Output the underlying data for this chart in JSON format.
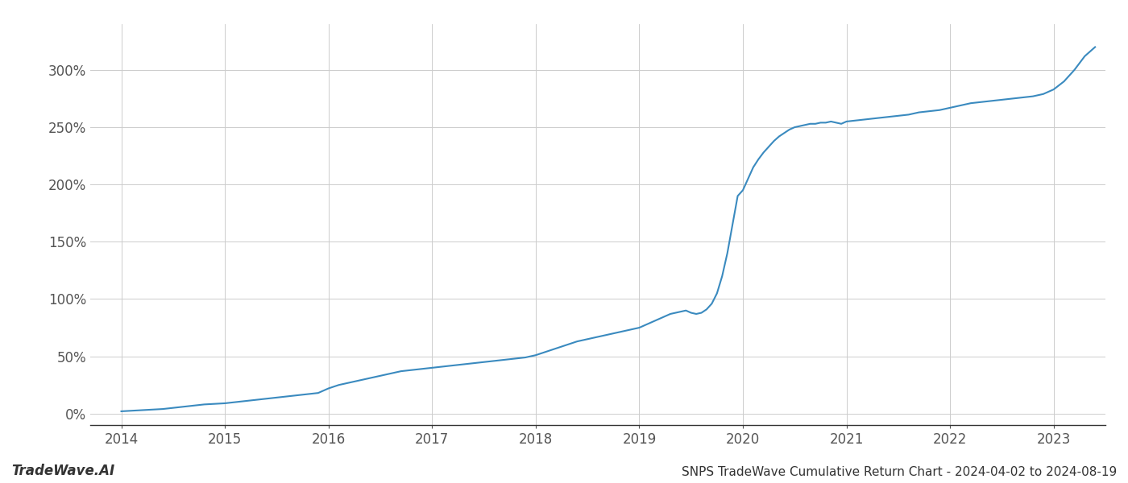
{
  "title": "SNPS TradeWave Cumulative Return Chart - 2024-04-02 to 2024-08-19",
  "watermark": "TradeWave.AI",
  "line_color": "#3a8abf",
  "background_color": "#ffffff",
  "grid_color": "#cccccc",
  "x_years": [
    2014.0,
    2014.1,
    2014.2,
    2014.3,
    2014.4,
    2014.5,
    2014.6,
    2014.7,
    2014.8,
    2014.9,
    2015.0,
    2015.1,
    2015.2,
    2015.3,
    2015.4,
    2015.5,
    2015.6,
    2015.7,
    2015.8,
    2015.9,
    2016.0,
    2016.1,
    2016.2,
    2016.3,
    2016.4,
    2016.5,
    2016.6,
    2016.7,
    2016.8,
    2016.9,
    2017.0,
    2017.1,
    2017.2,
    2017.3,
    2017.4,
    2017.5,
    2017.6,
    2017.7,
    2017.8,
    2017.9,
    2018.0,
    2018.1,
    2018.2,
    2018.3,
    2018.4,
    2018.5,
    2018.6,
    2018.7,
    2018.8,
    2018.9,
    2019.0,
    2019.05,
    2019.1,
    2019.15,
    2019.2,
    2019.25,
    2019.3,
    2019.35,
    2019.4,
    2019.45,
    2019.5,
    2019.55,
    2019.6,
    2019.65,
    2019.7,
    2019.75,
    2019.8,
    2019.85,
    2019.9,
    2019.95,
    2020.0,
    2020.05,
    2020.1,
    2020.15,
    2020.2,
    2020.25,
    2020.3,
    2020.35,
    2020.4,
    2020.45,
    2020.5,
    2020.55,
    2020.6,
    2020.65,
    2020.7,
    2020.75,
    2020.8,
    2020.85,
    2020.9,
    2020.95,
    2021.0,
    2021.1,
    2021.2,
    2021.3,
    2021.4,
    2021.5,
    2021.6,
    2021.7,
    2021.8,
    2021.9,
    2022.0,
    2022.1,
    2022.2,
    2022.3,
    2022.4,
    2022.5,
    2022.6,
    2022.7,
    2022.8,
    2022.9,
    2023.0,
    2023.1,
    2023.2,
    2023.3,
    2023.4
  ],
  "y_values": [
    2,
    2.5,
    3,
    3.5,
    4,
    5,
    6,
    7,
    8,
    8.5,
    9,
    10,
    11,
    12,
    13,
    14,
    15,
    16,
    17,
    18,
    22,
    25,
    27,
    29,
    31,
    33,
    35,
    37,
    38,
    39,
    40,
    41,
    42,
    43,
    44,
    45,
    46,
    47,
    48,
    49,
    51,
    54,
    57,
    60,
    63,
    65,
    67,
    69,
    71,
    73,
    75,
    77,
    79,
    81,
    83,
    85,
    87,
    88,
    89,
    90,
    88,
    87,
    88,
    91,
    96,
    105,
    120,
    140,
    165,
    190,
    195,
    205,
    215,
    222,
    228,
    233,
    238,
    242,
    245,
    248,
    250,
    251,
    252,
    253,
    253,
    254,
    254,
    255,
    254,
    253,
    255,
    256,
    257,
    258,
    259,
    260,
    261,
    263,
    264,
    265,
    267,
    269,
    271,
    272,
    273,
    274,
    275,
    276,
    277,
    279,
    283,
    290,
    300,
    312,
    320
  ],
  "xlim": [
    2013.7,
    2023.5
  ],
  "ylim": [
    -10,
    340
  ],
  "yticks": [
    0,
    50,
    100,
    150,
    200,
    250,
    300
  ],
  "xticks": [
    2014,
    2015,
    2016,
    2017,
    2018,
    2019,
    2020,
    2021,
    2022,
    2023
  ],
  "line_width": 1.5,
  "title_fontsize": 11,
  "tick_fontsize": 12,
  "watermark_fontsize": 12
}
